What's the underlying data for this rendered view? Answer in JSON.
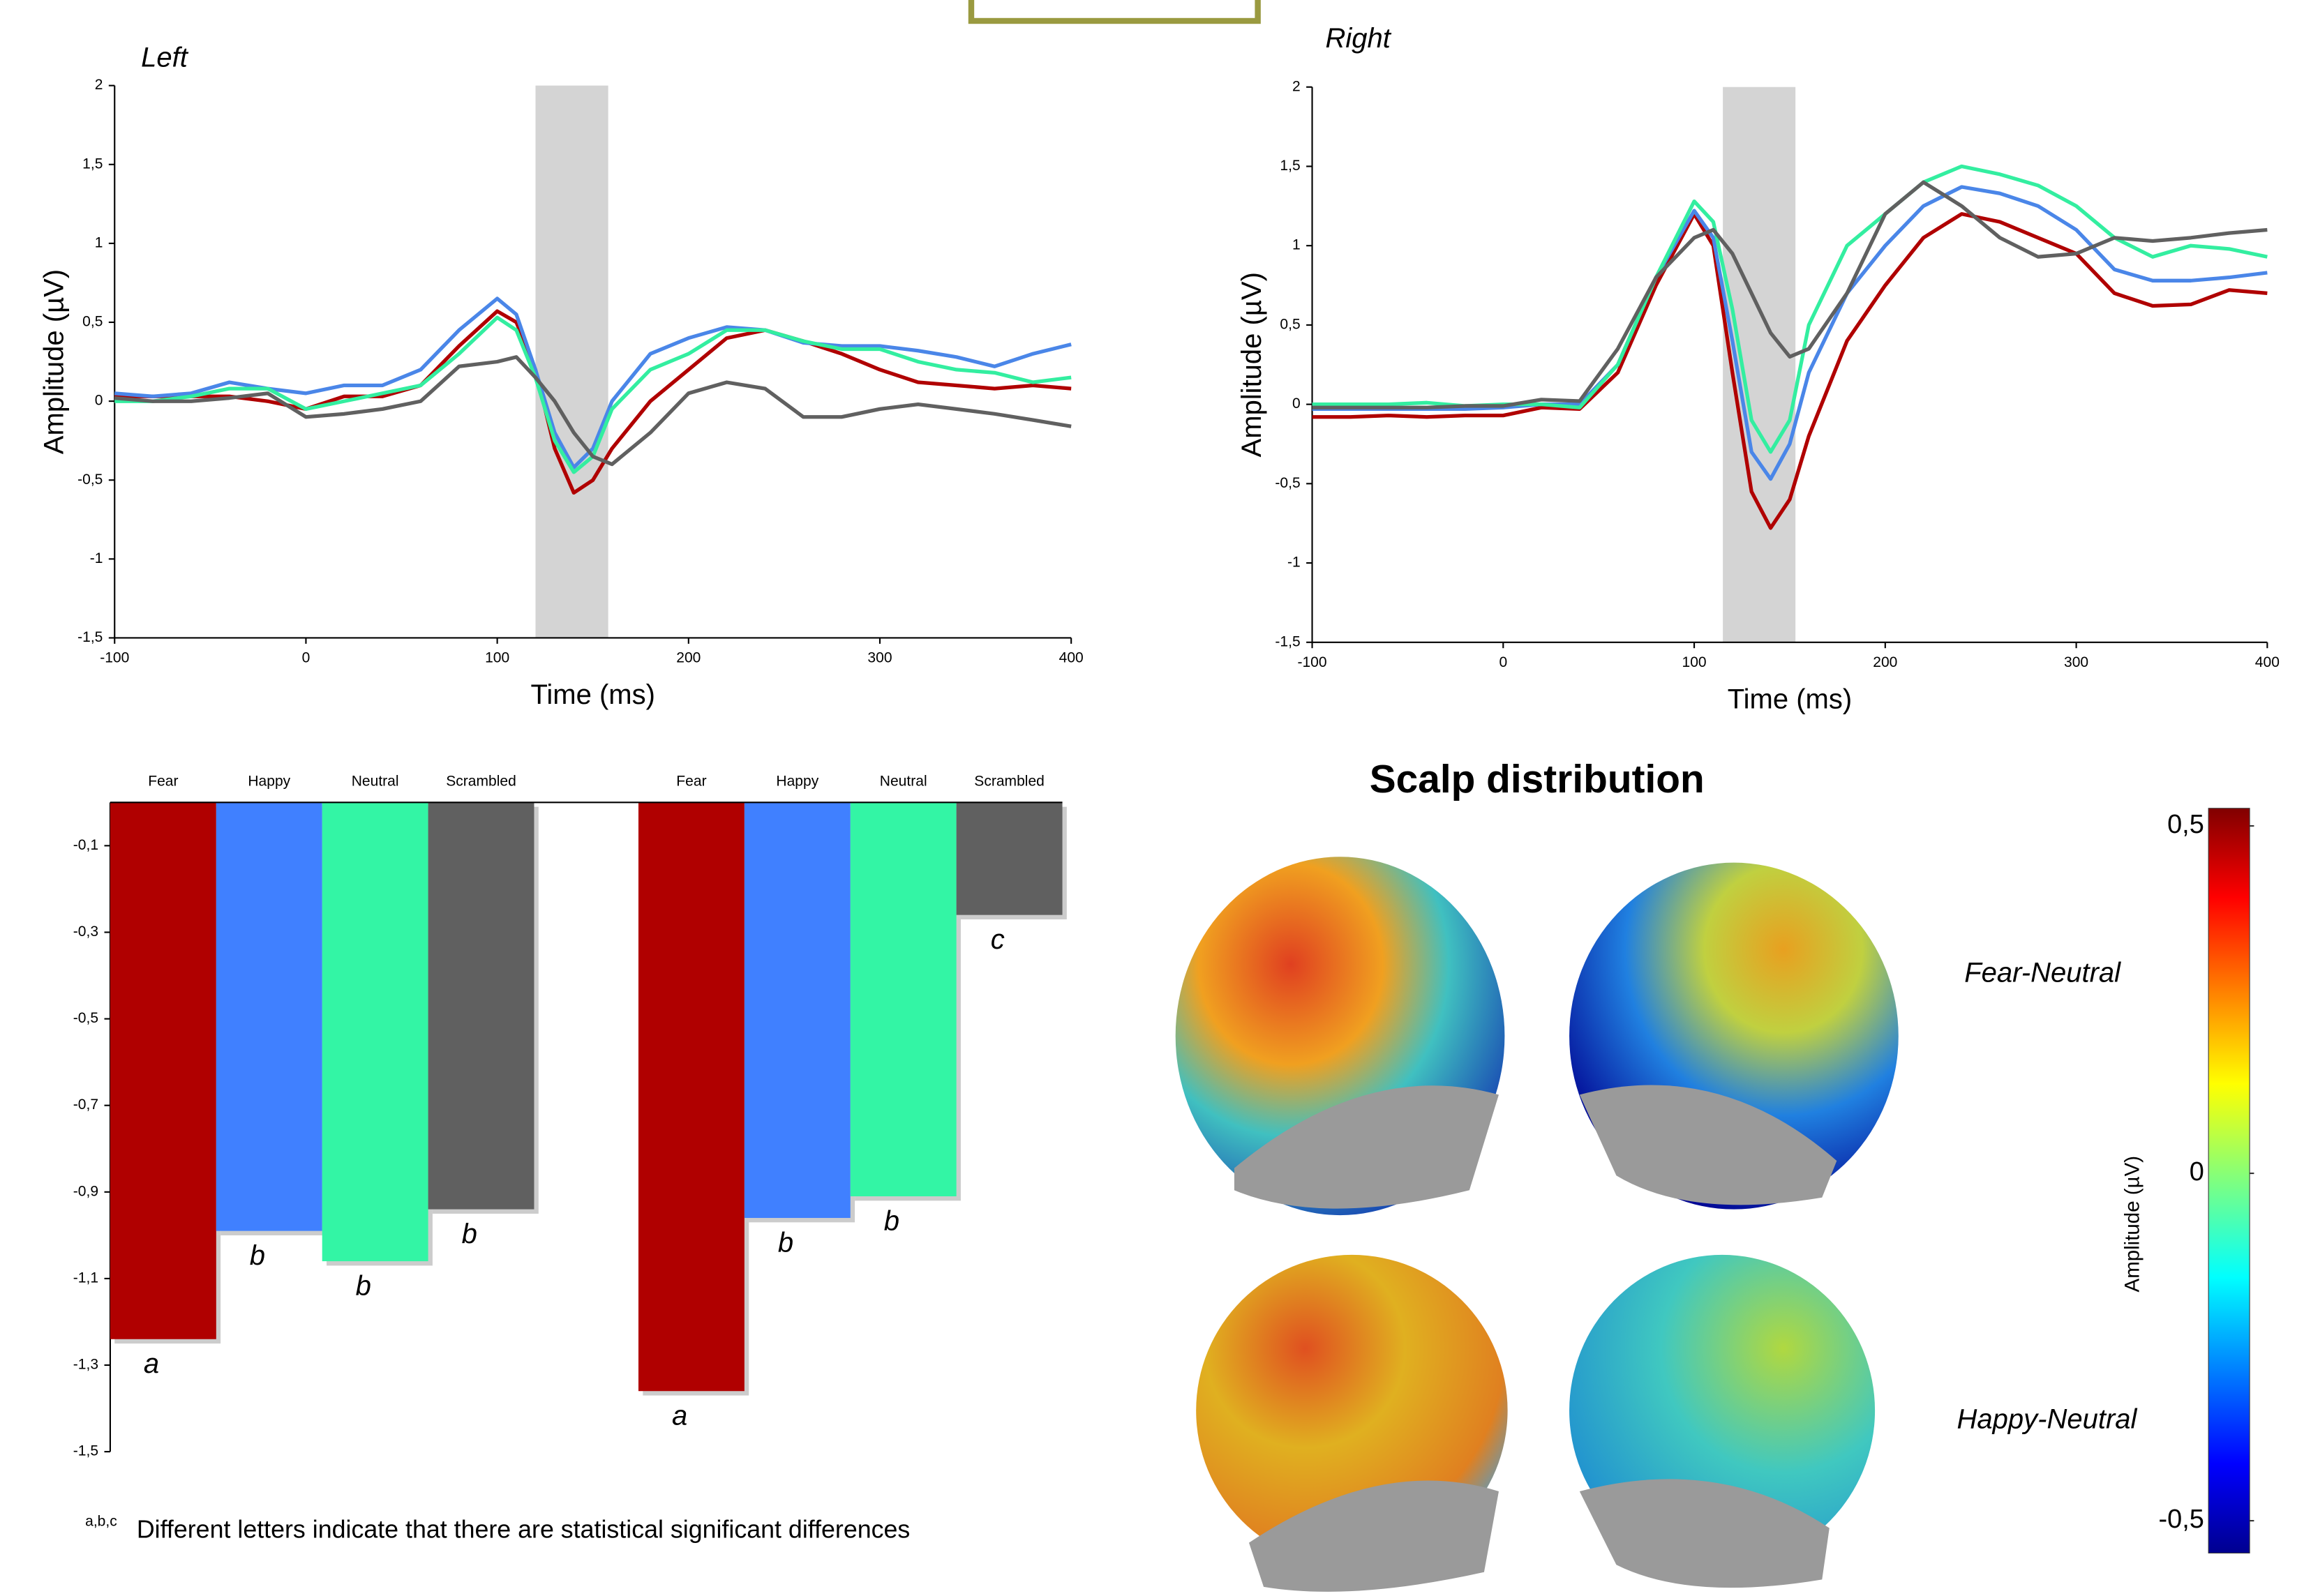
{
  "chart_data": [
    {
      "type": "line",
      "title": "Left",
      "x_label": "Time (ms)",
      "y_label": "Amplitude (µV)",
      "xlim": [
        -100,
        400
      ],
      "xticks": [
        -100,
        0,
        100,
        200,
        300,
        400
      ],
      "ylim": [
        -1.5,
        2
      ],
      "yticks": [
        {
          "value": -1.5,
          "label": "-1,5"
        },
        -1,
        {
          "value": -0.5,
          "label": "-0,5"
        },
        0,
        {
          "value": 0.5,
          "label": "0,5"
        },
        1,
        {
          "value": 1.5,
          "label": "1,5"
        },
        2
      ],
      "shaded_x": [
        120,
        158
      ],
      "shade_color": "#d4d4d4",
      "x": [
        -100,
        -80,
        -60,
        -40,
        -20,
        0,
        20,
        40,
        60,
        80,
        100,
        110,
        120,
        130,
        140,
        150,
        160,
        180,
        200,
        220,
        240,
        260,
        280,
        300,
        320,
        340,
        360,
        380,
        400
      ],
      "series": [
        {
          "color": "#b00000",
          "values": [
            0.03,
            0.03,
            0.03,
            0.03,
            0.0,
            -0.05,
            0.03,
            0.03,
            0.1,
            0.35,
            0.57,
            0.5,
            0.2,
            -0.3,
            -0.58,
            -0.5,
            -0.3,
            0.0,
            0.2,
            0.4,
            0.45,
            0.38,
            0.3,
            0.2,
            0.12,
            0.1,
            0.08,
            0.1,
            0.08
          ]
        },
        {
          "color": "#4a86e8",
          "values": [
            0.05,
            0.03,
            0.05,
            0.12,
            0.08,
            0.05,
            0.1,
            0.1,
            0.2,
            0.45,
            0.65,
            0.55,
            0.2,
            -0.2,
            -0.42,
            -0.3,
            0.0,
            0.3,
            0.4,
            0.47,
            0.45,
            0.37,
            0.35,
            0.35,
            0.32,
            0.28,
            0.22,
            0.3,
            0.36
          ]
        },
        {
          "color": "#33eea0",
          "values": [
            0.0,
            0.0,
            0.03,
            0.08,
            0.08,
            -0.05,
            0.0,
            0.05,
            0.1,
            0.3,
            0.53,
            0.45,
            0.15,
            -0.25,
            -0.45,
            -0.35,
            -0.05,
            0.2,
            0.3,
            0.45,
            0.45,
            0.38,
            0.33,
            0.33,
            0.25,
            0.2,
            0.18,
            0.12,
            0.15
          ]
        },
        {
          "color": "#606060",
          "values": [
            0.02,
            0.0,
            0.0,
            0.02,
            0.05,
            -0.1,
            -0.08,
            -0.05,
            0.0,
            0.22,
            0.25,
            0.28,
            0.15,
            0.0,
            -0.2,
            -0.35,
            -0.4,
            -0.2,
            0.05,
            0.12,
            0.08,
            -0.1,
            -0.1,
            -0.05,
            -0.02,
            -0.05,
            -0.08,
            -0.12,
            -0.16
          ]
        }
      ]
    },
    {
      "type": "line",
      "title": "Right",
      "x_label": "Time (ms)",
      "y_label": "Amplitude (µV)",
      "xlim": [
        -100,
        400
      ],
      "xticks": [
        -100,
        0,
        100,
        200,
        300,
        400
      ],
      "ylim": [
        -1.5,
        2
      ],
      "yticks": [
        {
          "value": -1.5,
          "label": "-1,5"
        },
        -1,
        {
          "value": -0.5,
          "label": "-0,5"
        },
        0,
        {
          "value": 0.5,
          "label": "0,5"
        },
        1,
        {
          "value": 1.5,
          "label": "1,5"
        },
        2
      ],
      "shaded_x": [
        115,
        153
      ],
      "shade_color": "#d4d4d4",
      "x": [
        -100,
        -80,
        -60,
        -40,
        -20,
        0,
        20,
        40,
        60,
        80,
        100,
        110,
        120,
        130,
        140,
        150,
        160,
        180,
        200,
        220,
        240,
        260,
        280,
        300,
        320,
        340,
        360,
        380,
        400
      ],
      "series": [
        {
          "color": "#b00000",
          "values": [
            -0.08,
            -0.08,
            -0.07,
            -0.08,
            -0.07,
            -0.07,
            -0.02,
            -0.03,
            0.2,
            0.75,
            1.2,
            1.0,
            0.2,
            -0.55,
            -0.78,
            -0.6,
            -0.2,
            0.4,
            0.75,
            1.05,
            1.2,
            1.15,
            1.05,
            0.95,
            0.7,
            0.62,
            0.63,
            0.72,
            0.7
          ]
        },
        {
          "color": "#4a86e8",
          "values": [
            -0.03,
            -0.03,
            -0.03,
            -0.03,
            -0.03,
            -0.02,
            0.0,
            0.0,
            0.25,
            0.8,
            1.22,
            1.05,
            0.4,
            -0.3,
            -0.47,
            -0.25,
            0.2,
            0.7,
            1.0,
            1.25,
            1.37,
            1.33,
            1.25,
            1.1,
            0.85,
            0.78,
            0.78,
            0.8,
            0.83
          ]
        },
        {
          "color": "#33eea0",
          "values": [
            0.0,
            0.0,
            0.0,
            0.01,
            -0.01,
            0.0,
            0.0,
            -0.02,
            0.25,
            0.8,
            1.28,
            1.15,
            0.6,
            -0.1,
            -0.3,
            -0.1,
            0.5,
            1.0,
            1.2,
            1.4,
            1.5,
            1.45,
            1.38,
            1.25,
            1.05,
            0.93,
            1.0,
            0.98,
            0.93
          ]
        },
        {
          "color": "#606060",
          "values": [
            -0.02,
            -0.02,
            -0.02,
            -0.02,
            -0.01,
            -0.01,
            0.03,
            0.02,
            0.35,
            0.8,
            1.05,
            1.1,
            0.95,
            0.7,
            0.45,
            0.3,
            0.35,
            0.7,
            1.2,
            1.4,
            1.25,
            1.05,
            0.93,
            0.95,
            1.05,
            1.03,
            1.05,
            1.08,
            1.1
          ]
        }
      ]
    },
    {
      "type": "bar",
      "categories": [
        "Fear",
        "Happy",
        "Neutral",
        "Scrambled"
      ],
      "colors": [
        "#b00000",
        "#4080ff",
        "#33f5a5",
        "#606060"
      ],
      "ylim": [
        -1.5,
        0
      ],
      "yticks": [
        {
          "value": -0.1,
          "label": "-0,1"
        },
        {
          "value": -0.3,
          "label": "-0,3"
        },
        {
          "value": -0.5,
          "label": "-0,5"
        },
        {
          "value": -0.7,
          "label": "-0,7"
        },
        {
          "value": -0.9,
          "label": "-0,9"
        },
        {
          "value": -1.1,
          "label": "-1,1"
        },
        {
          "value": -1.3,
          "label": "-1,3"
        },
        {
          "value": -1.5,
          "label": "-1,5"
        }
      ],
      "series": [
        {
          "values": [
            -1.24,
            -0.99,
            -1.06,
            -0.94
          ],
          "letters": [
            "a",
            "b",
            "b",
            "b"
          ]
        },
        {
          "values": [
            -1.36,
            -0.96,
            -0.91,
            -0.26
          ],
          "letters": [
            "a",
            "b",
            "b",
            "c"
          ]
        }
      ],
      "footnote_marker": "a,b,c",
      "footnote": "Different letters indicate that there are statistical significant differences"
    }
  ],
  "scalp": {
    "title": "Scalp distribution",
    "conditions": [
      "Fear-Neutral",
      "Happy-Neutral"
    ],
    "colorbar": {
      "label": "Amplitude (µV)",
      "lim": [
        -0.5,
        0.5
      ],
      "ticks": [
        {
          "value": 0.5,
          "label": "0,5"
        },
        0,
        {
          "value": -0.5,
          "label": "-0,5"
        }
      ]
    }
  }
}
